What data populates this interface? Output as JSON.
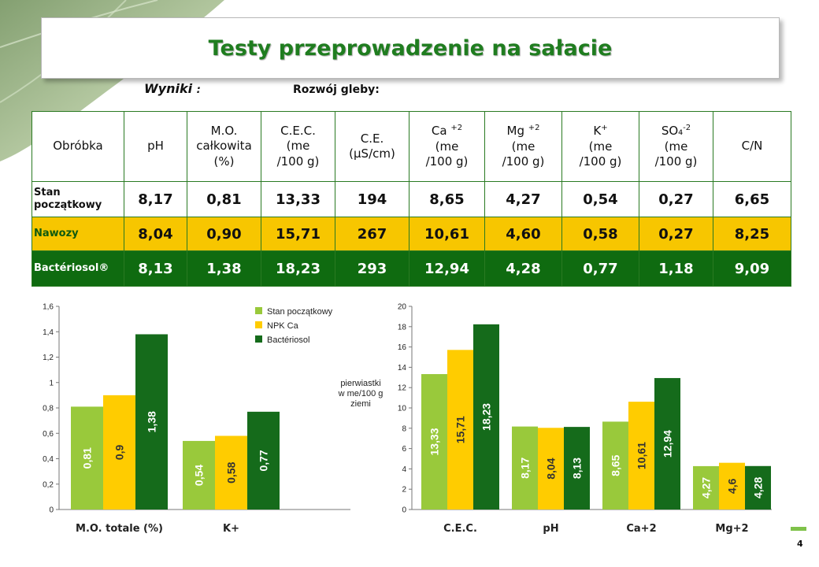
{
  "title": "Testy przeprowadzenie na sałacie",
  "results_label": "Wyniki",
  "results_colon": ":",
  "soil_label": "Rozwój gleby:",
  "table": {
    "header": {
      "c0": [
        "Obróbka"
      ],
      "c1": [
        "pH"
      ],
      "c2": [
        "M.O.",
        "całkowita",
        "(%)"
      ],
      "c3": [
        "C.E.C.",
        "(me",
        "/100 g)"
      ],
      "c4": [
        "C.E.",
        "(µS/cm)"
      ],
      "c5_base": "Ca",
      "c5_sup": "+2",
      "c5_rest": [
        "(me",
        "/100 g)"
      ],
      "c6_base": "Mg",
      "c6_sup": "+2",
      "c6_rest": [
        "(me",
        "/100 g)"
      ],
      "c7_base": "K",
      "c7_sup": "+",
      "c7_rest": [
        "(me",
        "/100 g)"
      ],
      "c8_base": "SO₄",
      "c8_sup": "-2",
      "c8_rest": [
        "(me",
        "/100 g)"
      ],
      "c9": [
        "C/N"
      ]
    },
    "rows": [
      {
        "label": "Stan początkowy",
        "values": [
          "8,17",
          "0,81",
          "13,33",
          "194",
          "8,65",
          "4,27",
          "0,54",
          "0,27",
          "6,65"
        ]
      },
      {
        "label": "Nawozy",
        "values": [
          "8,04",
          "0,90",
          "15,71",
          "267",
          "10,61",
          "4,60",
          "0,58",
          "0,27",
          "8,25"
        ]
      },
      {
        "label": "Bactériosol®",
        "values": [
          "8,13",
          "1,38",
          "18,23",
          "293",
          "12,94",
          "4,28",
          "0,77",
          "1,18",
          "9,09"
        ]
      }
    ]
  },
  "page_number": "4",
  "chart_data": [
    {
      "type": "bar",
      "categories": [
        "M.O. totale (%)",
        "K+"
      ],
      "series": [
        {
          "name": "Stan początkowy",
          "color": "#99c93b",
          "values": [
            0.81,
            0.54
          ],
          "labels": [
            "0,81",
            "0,54"
          ]
        },
        {
          "name": "NPK Ca",
          "color": "#ffcc00",
          "values": [
            0.9,
            0.58
          ],
          "labels": [
            "0,9",
            "0,58"
          ]
        },
        {
          "name": "Bactériosol",
          "color": "#156b1b",
          "values": [
            1.38,
            0.77
          ],
          "labels": [
            "1,38",
            "0,77"
          ]
        }
      ],
      "ylim": [
        0,
        1.6
      ],
      "yticks": [
        0,
        0.2,
        0.4,
        0.6,
        0.8,
        1,
        1.2,
        1.4,
        1.6
      ],
      "ytick_labels": [
        "0",
        "0,2",
        "0,4",
        "0,6",
        "0,8",
        "1",
        "1,2",
        "1,4",
        "1,6"
      ],
      "legend": "top-right",
      "grid": false
    },
    {
      "type": "bar",
      "categories": [
        "C.E.C.",
        "pH",
        "Ca+2",
        "Mg+2"
      ],
      "series": [
        {
          "name": "Stan początkowy",
          "color": "#99c93b",
          "values": [
            13.33,
            8.17,
            8.65,
            4.27
          ],
          "labels": [
            "13,33",
            "8,17",
            "8,65",
            "4,27"
          ]
        },
        {
          "name": "NPK Ca",
          "color": "#ffcc00",
          "values": [
            15.71,
            8.04,
            10.61,
            4.6
          ],
          "labels": [
            "15,71",
            "8,04",
            "10,61",
            "4,6"
          ]
        },
        {
          "name": "Bactériosol",
          "color": "#156b1b",
          "values": [
            18.23,
            8.13,
            12.94,
            4.28
          ],
          "labels": [
            "18,23",
            "8,13",
            "12,94",
            "4,28"
          ]
        }
      ],
      "ylim": [
        0,
        20
      ],
      "yticks": [
        0,
        2,
        4,
        6,
        8,
        10,
        12,
        14,
        16,
        18,
        20
      ],
      "ytick_labels": [
        "0",
        "2",
        "4",
        "6",
        "8",
        "10",
        "12",
        "14",
        "16",
        "18",
        "20"
      ],
      "ylabel": [
        "pierwiastki",
        "w me/100 g",
        "ziemi"
      ],
      "grid": false
    }
  ]
}
